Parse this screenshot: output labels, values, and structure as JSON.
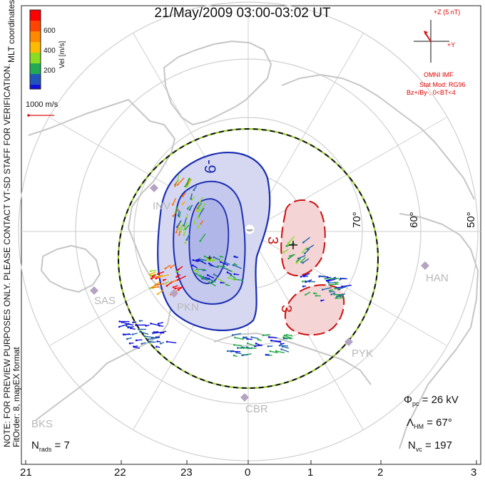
{
  "title": "21/May/2009 03:00-03:02 UT",
  "colorbar": {
    "label": "Vel [m/s]",
    "ticks": [
      "600",
      "400",
      "200"
    ],
    "colors": [
      "#ff0000",
      "#ff6a00",
      "#ffaa00",
      "#88dd22",
      "#22aa44",
      "#2266aa",
      "#1111dd"
    ]
  },
  "side_text": {
    "top": "MLT coordinates",
    "notice": "NOTE: FOR PREVIEW PURPOSES ONLY. PLEASE CONTACT VT-SD STAFF FOR VERIFICATION.",
    "fit": "FitOrder: 8, mapEX format"
  },
  "scale_vector": "1000 m/s",
  "imf": {
    "z_label": "+Z (5 nT)",
    "y_label": "+Y",
    "source": "OMNI IMF",
    "model": "Stat Mod: RG96",
    "condition": "Bz+/By-, 0<BT<4"
  },
  "latitude_labels": [
    "70°",
    "60°",
    "50°"
  ],
  "contour_labels": {
    "negative": "-9",
    "positive_top": "3",
    "positive_bottom": "3"
  },
  "stations": [
    "INV",
    "SAS",
    "PKN",
    "HAN",
    "PYK",
    "CBR",
    "BKS"
  ],
  "stats": {
    "phi_pc": "= 26 kV",
    "lambda_hm": "= 67°",
    "n_vc": "= 197",
    "n_rads": "= 7"
  },
  "mlt_ticks": [
    "21",
    "22",
    "23",
    "0",
    "1",
    "2",
    "3"
  ],
  "colors": {
    "negative_contour": "#1b2fb0",
    "negative_fill": "#c9cdf0",
    "positive_contour": "#cc1111",
    "positive_fill": "#f3d0d0",
    "continent": "#c8c8c8",
    "grid": "#c8c8c8",
    "station": "#b5a3c2"
  }
}
